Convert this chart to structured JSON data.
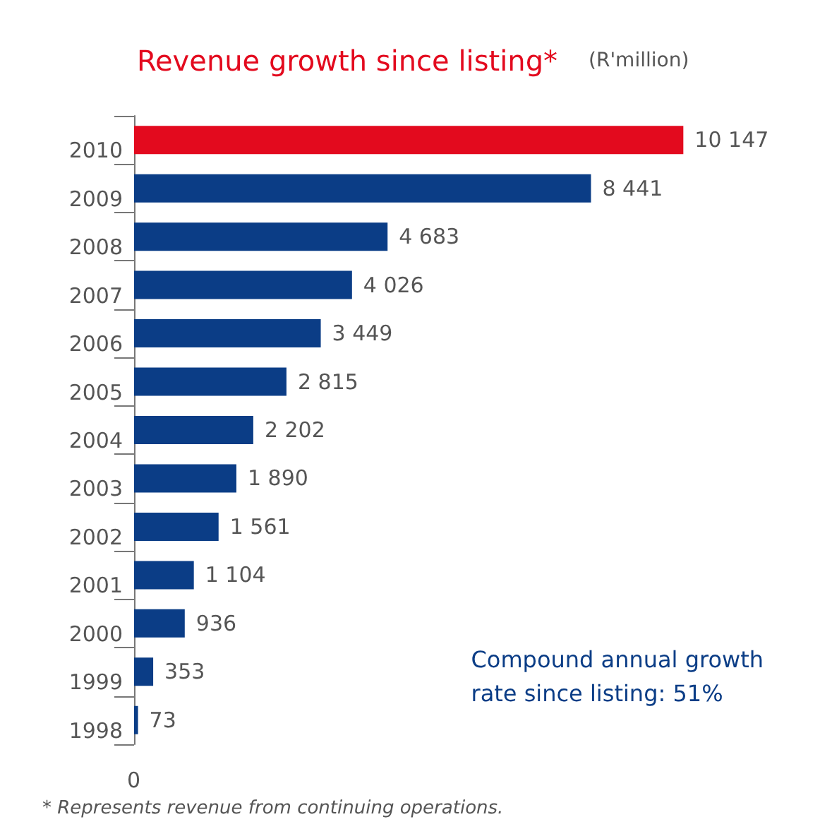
{
  "chart_data": {
    "type": "bar",
    "orientation": "horizontal",
    "title": "Revenue growth since listing*",
    "subtitle": "(R'million)",
    "categories": [
      "2010",
      "2009",
      "2008",
      "2007",
      "2006",
      "2005",
      "2004",
      "2003",
      "2002",
      "2001",
      "2000",
      "1999",
      "1998"
    ],
    "values": [
      10147,
      8441,
      4683,
      4026,
      3449,
      2815,
      2202,
      1890,
      1561,
      1104,
      936,
      353,
      73
    ],
    "colors": [
      "#e30a1e",
      "#0b3d86",
      "#0b3d86",
      "#0b3d86",
      "#0b3d86",
      "#0b3d86",
      "#0b3d86",
      "#0b3d86",
      "#0b3d86",
      "#0b3d86",
      "#0b3d86",
      "#0b3d86",
      "#0b3d86"
    ],
    "value_labels": [
      "10 147",
      "8 441",
      "4 683",
      "4 026",
      "3 449",
      "2 815",
      "2 202",
      "1 890",
      "1 561",
      "1 104",
      "936",
      "353",
      "73"
    ],
    "annotations": [
      "Compound annual growth rate since listing: 51%",
      "* Represents revenue from continuing operations.",
      "0"
    ]
  }
}
